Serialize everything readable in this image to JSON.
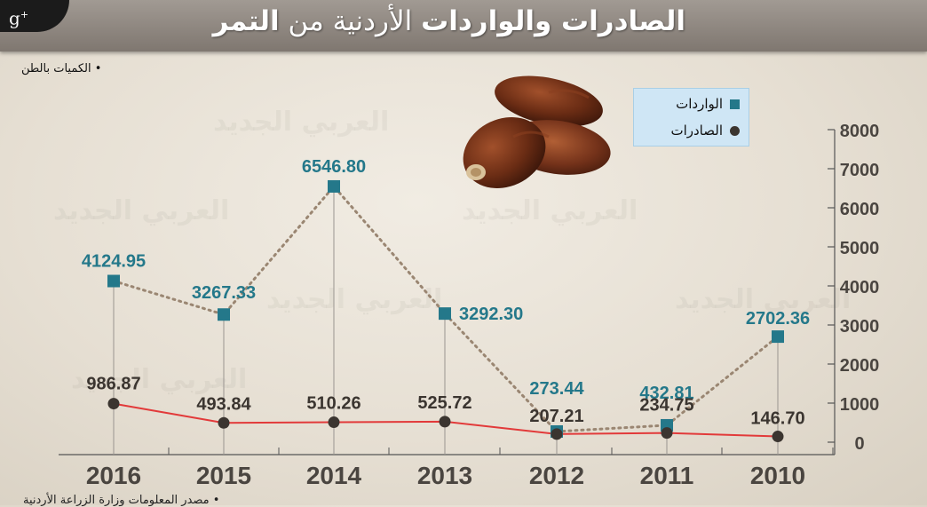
{
  "header": {
    "title_bold1": "الصادرات والواردات",
    "title_light": " الأردنية من ",
    "title_bold2": "التمر"
  },
  "social": {
    "gplus_label": "g",
    "gplus_sup": "+"
  },
  "unit_note": "• الكميات بالطن",
  "source_note": "• مصدر المعلومات وزارة الزراعة الأردنية",
  "legend": {
    "imports": "الواردات",
    "exports": "الصادرات"
  },
  "colors": {
    "imports": "#24788a",
    "imports_line": "#9a8672",
    "exports_marker": "#3b3530",
    "exports_line": "#e23a3a"
  },
  "chart_data": {
    "type": "line",
    "categories": [
      "2016",
      "2015",
      "2014",
      "2013",
      "2012",
      "2011",
      "2010"
    ],
    "series": [
      {
        "name": "الواردات",
        "values": [
          4124.95,
          3267.33,
          6546.8,
          3292.3,
          273.44,
          432.81,
          2702.36
        ],
        "labels": [
          "4124.95",
          "3267.33",
          "6546.80",
          "3292.30",
          "273.44",
          "432.81",
          "2702.36"
        ]
      },
      {
        "name": "الصادرات",
        "values": [
          986.87,
          493.84,
          510.26,
          525.72,
          207.21,
          234.75,
          146.7
        ],
        "labels": [
          "986.87",
          "493.84",
          "510.26",
          "525.72",
          "207.21",
          "234.75",
          "146.70"
        ]
      }
    ],
    "y_ticks": [
      "0",
      "1000",
      "2000",
      "3000",
      "4000",
      "5000",
      "6000",
      "7000",
      "8000"
    ],
    "ylim": [
      0,
      8000
    ],
    "y_axis_position": "right",
    "grid": false,
    "legend_position": "top-right"
  }
}
